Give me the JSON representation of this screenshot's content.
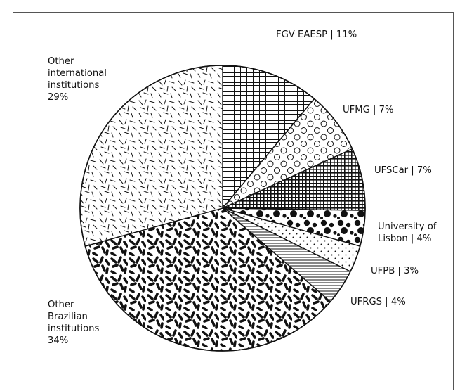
{
  "chart_data": {
    "type": "pie",
    "title": "",
    "start_angle_deg": 0,
    "direction": "clockwise",
    "slices": [
      {
        "name": "FGV EAESP",
        "value": 11,
        "label_lines": [
          "FGV EAESP | 11%"
        ],
        "pattern": "grid-hatch"
      },
      {
        "name": "UFMG",
        "value": 7,
        "label_lines": [
          "UFMG | 7%"
        ],
        "pattern": "open-circles"
      },
      {
        "name": "UFSCar",
        "value": 7,
        "label_lines": [
          "UFSCar |  7%"
        ],
        "pattern": "fine-grid"
      },
      {
        "name": "University of Lisbon",
        "value": 4,
        "label_lines": [
          "University of",
          "Lisbon | 4%"
        ],
        "pattern": "black-dots"
      },
      {
        "name": "UFPB",
        "value": 3,
        "label_lines": [
          "UFPB | 3%"
        ],
        "pattern": "fine-dots"
      },
      {
        "name": "UFRGS",
        "value": 4,
        "label_lines": [
          "UFRGS | 4%"
        ],
        "pattern": "horizontal-lines"
      },
      {
        "name": "Other Brazilian institutions",
        "value": 34,
        "label_lines": [
          "Other",
          "Brazilian",
          "institutions",
          "34%"
        ],
        "pattern": "thick-dashes"
      },
      {
        "name": "Other international institutions",
        "value": 29,
        "label_lines": [
          "Other",
          "international",
          "institutions",
          "29%"
        ],
        "pattern": "thin-dashes"
      }
    ],
    "colors": {
      "ink": "#111111",
      "background": "#ffffff"
    }
  }
}
